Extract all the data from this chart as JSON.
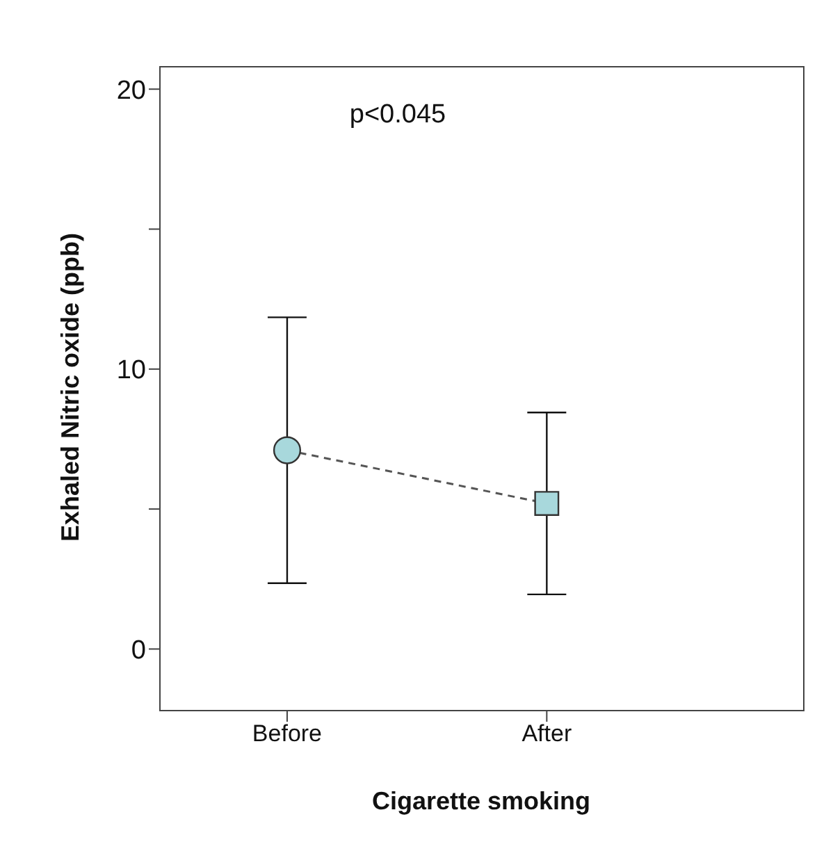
{
  "chart_data": {
    "type": "scatter",
    "xlabel": "Cigarette smoking",
    "ylabel": "Exhaled Nitric oxide (ppb)",
    "categories": [
      "Before",
      "After"
    ],
    "series": [
      {
        "type": "line",
        "color": "#555555",
        "values": [
          7.1,
          5.2
        ],
        "line_style": "dashed",
        "marker": "none"
      },
      {
        "color": "#a8d8dc",
        "values": [
          7.1,
          null
        ],
        "errors": [
          [
            2.35,
            11.85
          ],
          null
        ],
        "marker": "circle"
      },
      {
        "color": "#a8d8dc",
        "values": [
          null,
          5.2
        ],
        "errors": [
          null,
          [
            1.95,
            8.45
          ]
        ],
        "marker": "square"
      }
    ],
    "ylim": [
      -2.2,
      20.8
    ],
    "yticks": [
      0,
      {
        "value": 5,
        "label": null
      },
      10,
      {
        "value": 15,
        "label": null
      },
      20
    ],
    "annotations": [
      "p<0.045"
    ]
  }
}
